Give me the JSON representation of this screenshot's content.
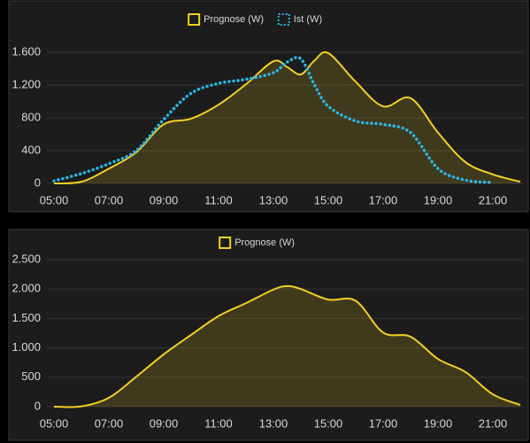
{
  "chart_data": [
    {
      "type": "line",
      "x": [
        "05:00",
        "06:00",
        "07:00",
        "08:00",
        "09:00",
        "10:00",
        "11:00",
        "12:00",
        "13:00",
        "13:30",
        "14:00",
        "14:30",
        "15:00",
        "16:00",
        "17:00",
        "18:00",
        "19:00",
        "20:00",
        "21:00",
        "22:00"
      ],
      "series": [
        {
          "name": "Prognose (W)",
          "color": "#f2d024",
          "fill": true,
          "style": "solid",
          "values": [
            0,
            20,
            180,
            380,
            720,
            790,
            960,
            1210,
            1490,
            1420,
            1330,
            1500,
            1590,
            1240,
            940,
            1040,
            620,
            260,
            110,
            20
          ]
        },
        {
          "name": "Ist (W)",
          "color": "#29b6e6",
          "fill": false,
          "style": "dotted",
          "values": [
            30,
            120,
            240,
            400,
            780,
            1100,
            1220,
            1270,
            1350,
            1480,
            1520,
            1200,
            940,
            760,
            720,
            620,
            180,
            40,
            10,
            null
          ]
        }
      ],
      "xlim": [
        "05:00",
        "22:00"
      ],
      "xticks": [
        "05:00",
        "07:00",
        "09:00",
        "11:00",
        "13:00",
        "15:00",
        "17:00",
        "19:00",
        "21:00"
      ],
      "ylim": [
        0,
        1600
      ],
      "yticks": [
        0,
        {
          "value": 400,
          "label": "400"
        },
        {
          "value": 800,
          "label": "800"
        },
        {
          "value": 1200,
          "label": "1.200"
        },
        {
          "value": 1600,
          "label": "1.600"
        }
      ],
      "grid": true
    },
    {
      "type": "line",
      "x": [
        "05:00",
        "06:00",
        "07:00",
        "08:00",
        "09:00",
        "10:00",
        "11:00",
        "12:00",
        "13:00",
        "13:30",
        "14:00",
        "15:00",
        "16:00",
        "17:00",
        "18:00",
        "19:00",
        "20:00",
        "21:00",
        "22:00"
      ],
      "series": [
        {
          "name": "Prognose (W)",
          "color": "#f2d024",
          "fill": true,
          "style": "solid",
          "values": [
            0,
            5,
            150,
            510,
            890,
            1220,
            1540,
            1760,
            1990,
            2050,
            2000,
            1820,
            1800,
            1260,
            1190,
            810,
            590,
            210,
            30
          ]
        }
      ],
      "xlim": [
        "05:00",
        "22:00"
      ],
      "xticks": [
        "05:00",
        "07:00",
        "09:00",
        "11:00",
        "13:00",
        "15:00",
        "17:00",
        "19:00",
        "21:00"
      ],
      "ylim": [
        0,
        2500
      ],
      "yticks": [
        0,
        {
          "value": 500,
          "label": "500"
        },
        {
          "value": 1000,
          "label": "1.000"
        },
        {
          "value": 1500,
          "label": "1.500"
        },
        {
          "value": 2000,
          "label": "2.000"
        },
        {
          "value": 2500,
          "label": "2.500"
        }
      ],
      "grid": true
    }
  ]
}
